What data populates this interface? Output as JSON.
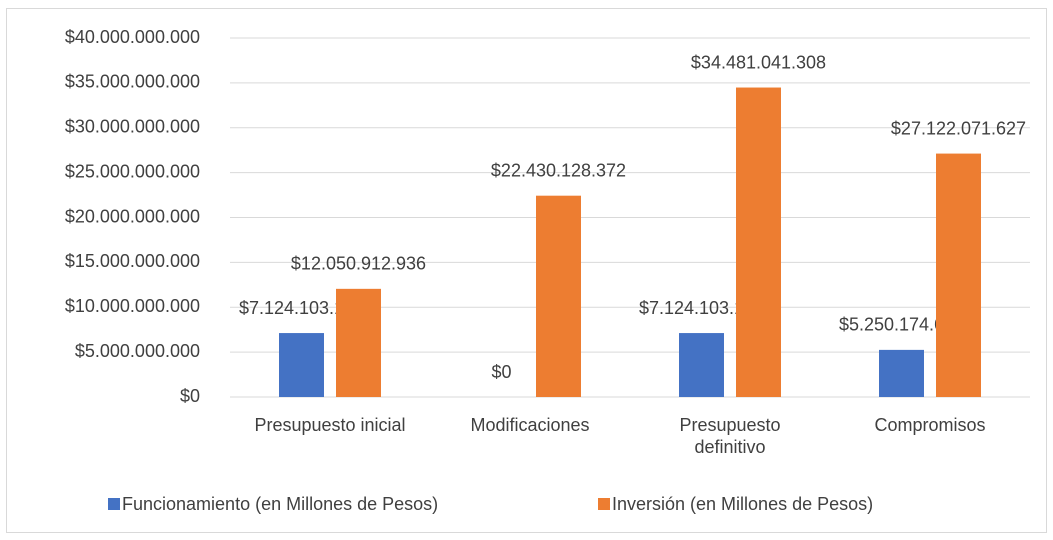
{
  "chart_data": {
    "type": "bar",
    "categories": [
      "Presupuesto inicial",
      "Modificaciones",
      "Presupuesto definitivo",
      "Compromisos"
    ],
    "series": [
      {
        "name": "Funcionamiento (en Millones de Pesos)",
        "color": "#4472c4",
        "values": [
          7124103163,
          0,
          7124103163,
          5250174620
        ],
        "value_labels": [
          "$7.124.103.163",
          "$0",
          "$7.124.103.163",
          "$5.250.174.620"
        ]
      },
      {
        "name": "Inversión (en Millones de Pesos)",
        "color": "#ed7d31",
        "values": [
          12050912936,
          22430128372,
          34481041308,
          27122071627
        ],
        "value_labels": [
          "$12.050.912.936",
          "$22.430.128.372",
          "$34.481.041.308",
          "$27.122.071.627"
        ]
      }
    ],
    "ylim": [
      0,
      40000000000
    ],
    "yticks": [
      {
        "value": 0,
        "label": "$0"
      },
      {
        "value": 5000000000,
        "label": "$5.000.000.000"
      },
      {
        "value": 10000000000,
        "label": "$10.000.000.000"
      },
      {
        "value": 15000000000,
        "label": "$15.000.000.000"
      },
      {
        "value": 20000000000,
        "label": "$20.000.000.000"
      },
      {
        "value": 25000000000,
        "label": "$25.000.000.000"
      },
      {
        "value": 30000000000,
        "label": "$30.000.000.000"
      },
      {
        "value": 35000000000,
        "label": "$35.000.000.000"
      },
      {
        "value": 40000000000,
        "label": "$40.000.000.000"
      }
    ],
    "grid": true,
    "legend": "bottom"
  }
}
